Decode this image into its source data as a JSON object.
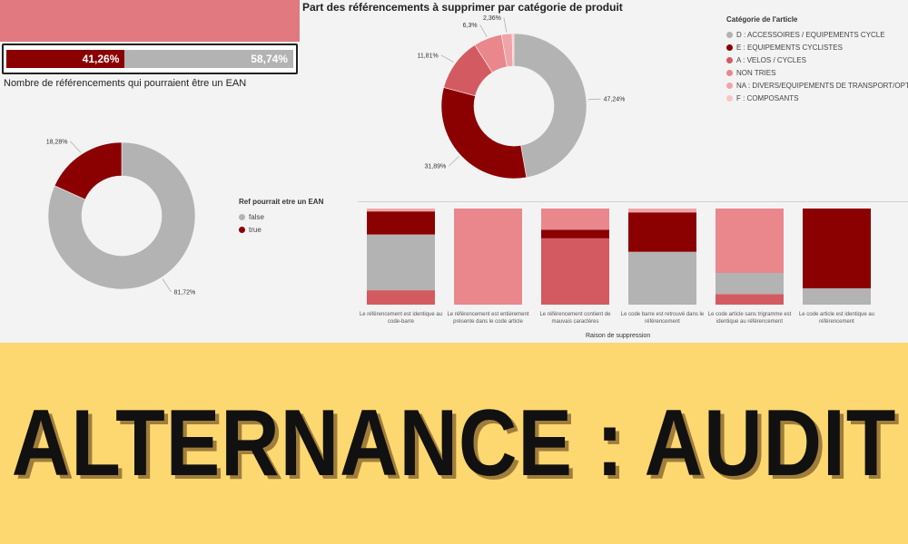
{
  "kpi": {
    "true_label": "41,26%",
    "false_label": "58,74%",
    "true_value": 41.26,
    "false_value": 58.74,
    "title": "Nombre de référencements qui pourraient être un EAN"
  },
  "colors": {
    "grey": "#b3b3b3",
    "darkred": "#8b0000",
    "red": "#d45a62",
    "pink": "#e9878d",
    "lightpink": "#f0a4a8",
    "palepink": "#f6c6c8",
    "banner": "#fdd870",
    "banner_top": "#e07a80"
  },
  "banner": {
    "text": "ALTERNANCE : AUDIT"
  },
  "chart_data": [
    {
      "type": "pie",
      "title": "Part des référencements à supprimer par catégorie de produit",
      "legend_title": "Catégorie de l'article",
      "legend_position": "top-right",
      "slices": [
        {
          "legend": "D : ACCESSOIRES / EQUIPEMENTS CYCLE",
          "value": 47.24,
          "label": "47,24%",
          "color": "#b3b3b3"
        },
        {
          "legend": "E : EQUIPEMENTS CYCLISTES",
          "value": 31.89,
          "label": "31,89%",
          "color": "#8b0000"
        },
        {
          "legend": "A : VELOS / CYCLES",
          "value": 11.81,
          "label": "11,81%",
          "color": "#d45a62"
        },
        {
          "legend": "NON TRIES",
          "value": 6.3,
          "label": "6,3%",
          "color": "#e9878d"
        },
        {
          "legend": "NA : DIVERS/EQUIPEMENTS DE TRANSPORT/OPTION...",
          "value": 2.36,
          "label": "2,36%",
          "color": "#f0a4a8"
        },
        {
          "legend": "F : COMPOSANTS",
          "value": 0.4,
          "label": "",
          "color": "#f6c6c8"
        }
      ]
    },
    {
      "type": "pie",
      "title": "",
      "slices": [
        {
          "legend": "false",
          "value": 81.72,
          "label": "81,72%",
          "color": "#b3b3b3"
        },
        {
          "legend": "true",
          "value": 18.28,
          "label": "18,28%",
          "color": "#8b0000"
        }
      ]
    },
    {
      "type": "bar",
      "stacked": "100%",
      "xlabel": "Raison de suppression",
      "legend_title": "Ref pourrait etre un EAN",
      "legend_items": [
        {
          "name": "false",
          "color": "#b3b3b3"
        },
        {
          "name": "true",
          "color": "#8b0000"
        }
      ],
      "categories": [
        "Le référencement est identique au code-barre",
        "Le référencement est entièrement présente dans le code article",
        "Le référencement contient de mauvais caractères",
        "Le code barre est retrouvé dans le référencement",
        "Le code article sans trigramme est identique au référencement",
        "Le code article est identique au référencement"
      ],
      "stacks": [
        [
          {
            "value": 15,
            "color": "#d45a62"
          },
          {
            "value": 58,
            "color": "#b3b3b3"
          },
          {
            "value": 24,
            "color": "#8b0000"
          },
          {
            "value": 3,
            "color": "#f0a4a8"
          }
        ],
        [
          {
            "value": 100,
            "color": "#e9878d"
          }
        ],
        [
          {
            "value": 69,
            "color": "#d45a62"
          },
          {
            "value": 9,
            "color": "#8b0000"
          },
          {
            "value": 22,
            "color": "#e9878d"
          }
        ],
        [
          {
            "value": 55,
            "color": "#b3b3b3"
          },
          {
            "value": 41,
            "color": "#8b0000"
          },
          {
            "value": 4,
            "color": "#f0a4a8"
          }
        ],
        [
          {
            "value": 11,
            "color": "#d45a62"
          },
          {
            "value": 22,
            "color": "#b3b3b3"
          },
          {
            "value": 67,
            "color": "#e9878d"
          }
        ],
        [
          {
            "value": 17,
            "color": "#b3b3b3"
          },
          {
            "value": 83,
            "color": "#8b0000"
          }
        ]
      ]
    }
  ]
}
